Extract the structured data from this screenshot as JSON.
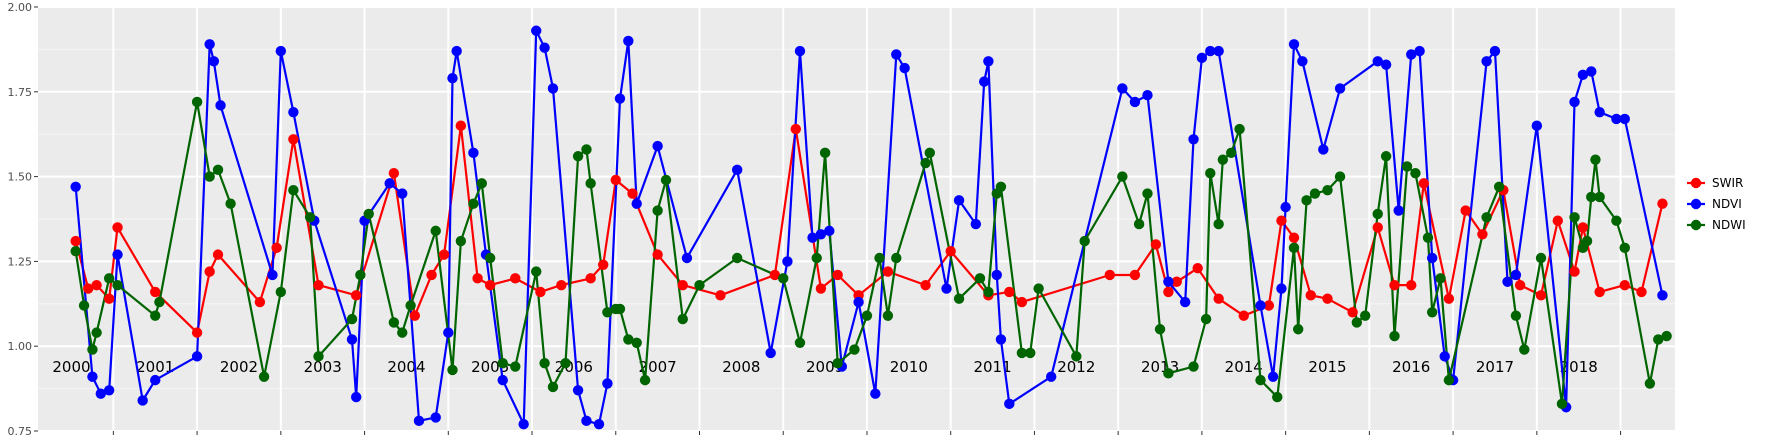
{
  "chart_data": {
    "type": "line",
    "x_range": [
      1999.6,
      2019.15
    ],
    "ylim": [
      0.75,
      2.0
    ],
    "y_ticks": [
      0.75,
      1.0,
      1.25,
      1.5,
      1.75,
      2.0
    ],
    "y_tick_labels": [
      "0.75",
      "1.00",
      "1.25",
      "1.50",
      "1.75",
      "2.00"
    ],
    "year_labels": [
      "2000",
      "2001",
      "2002",
      "2003",
      "2004",
      "2005",
      "2006",
      "2007",
      "2008",
      "2009",
      "2010",
      "2011",
      "2012",
      "2013",
      "2014",
      "2015",
      "2016",
      "2017",
      "2018"
    ],
    "grid": true,
    "legend_position": "right",
    "series": [
      {
        "name": "SWIR",
        "color": "#ff0000",
        "points": [
          [
            2000.05,
            1.31
          ],
          [
            2000.2,
            1.17
          ],
          [
            2000.3,
            1.18
          ],
          [
            2000.45,
            1.14
          ],
          [
            2000.55,
            1.35
          ],
          [
            2001.0,
            1.16
          ],
          [
            2001.5,
            1.04
          ],
          [
            2001.65,
            1.22
          ],
          [
            2001.75,
            1.27
          ],
          [
            2002.25,
            1.13
          ],
          [
            2002.45,
            1.29
          ],
          [
            2002.65,
            1.61
          ],
          [
            2002.95,
            1.18
          ],
          [
            2003.4,
            1.15
          ],
          [
            2003.85,
            1.51
          ],
          [
            2004.1,
            1.09
          ],
          [
            2004.3,
            1.21
          ],
          [
            2004.45,
            1.27
          ],
          [
            2004.65,
            1.65
          ],
          [
            2004.85,
            1.2
          ],
          [
            2005.0,
            1.18
          ],
          [
            2005.3,
            1.2
          ],
          [
            2005.6,
            1.16
          ],
          [
            2005.85,
            1.18
          ],
          [
            2006.2,
            1.2
          ],
          [
            2006.35,
            1.24
          ],
          [
            2006.5,
            1.49
          ],
          [
            2006.7,
            1.45
          ],
          [
            2007.0,
            1.27
          ],
          [
            2007.3,
            1.18
          ],
          [
            2007.75,
            1.15
          ],
          [
            2008.4,
            1.21
          ],
          [
            2008.65,
            1.64
          ],
          [
            2008.95,
            1.17
          ],
          [
            2009.15,
            1.21
          ],
          [
            2009.4,
            1.15
          ],
          [
            2009.75,
            1.22
          ],
          [
            2010.2,
            1.18
          ],
          [
            2010.5,
            1.28
          ],
          [
            2010.95,
            1.15
          ],
          [
            2011.2,
            1.16
          ],
          [
            2011.35,
            1.13
          ],
          [
            2012.4,
            1.21
          ],
          [
            2012.7,
            1.21
          ],
          [
            2012.95,
            1.3
          ],
          [
            2013.1,
            1.16
          ],
          [
            2013.2,
            1.19
          ],
          [
            2013.45,
            1.23
          ],
          [
            2013.7,
            1.14
          ],
          [
            2014.0,
            1.09
          ],
          [
            2014.3,
            1.12
          ],
          [
            2014.45,
            1.37
          ],
          [
            2014.6,
            1.32
          ],
          [
            2014.8,
            1.15
          ],
          [
            2015.0,
            1.14
          ],
          [
            2015.3,
            1.1
          ],
          [
            2015.6,
            1.35
          ],
          [
            2015.8,
            1.18
          ],
          [
            2016.0,
            1.18
          ],
          [
            2016.15,
            1.48
          ],
          [
            2016.45,
            1.14
          ],
          [
            2016.65,
            1.4
          ],
          [
            2016.85,
            1.33
          ],
          [
            2017.1,
            1.46
          ],
          [
            2017.3,
            1.18
          ],
          [
            2017.55,
            1.15
          ],
          [
            2017.75,
            1.37
          ],
          [
            2017.95,
            1.22
          ],
          [
            2018.05,
            1.35
          ],
          [
            2018.25,
            1.16
          ],
          [
            2018.55,
            1.18
          ],
          [
            2018.75,
            1.16
          ],
          [
            2019.0,
            1.42
          ]
        ]
      },
      {
        "name": "NDVI",
        "color": "#0000ff",
        "points": [
          [
            2000.05,
            1.47
          ],
          [
            2000.25,
            0.91
          ],
          [
            2000.35,
            0.86
          ],
          [
            2000.45,
            0.87
          ],
          [
            2000.55,
            1.27
          ],
          [
            2000.85,
            0.84
          ],
          [
            2001.0,
            0.9
          ],
          [
            2001.5,
            0.97
          ],
          [
            2001.65,
            1.89
          ],
          [
            2001.7,
            1.84
          ],
          [
            2001.78,
            1.71
          ],
          [
            2002.4,
            1.21
          ],
          [
            2002.5,
            1.87
          ],
          [
            2002.65,
            1.69
          ],
          [
            2002.9,
            1.37
          ],
          [
            2003.35,
            1.02
          ],
          [
            2003.4,
            0.85
          ],
          [
            2003.5,
            1.37
          ],
          [
            2003.8,
            1.48
          ],
          [
            2003.95,
            1.45
          ],
          [
            2004.15,
            0.78
          ],
          [
            2004.35,
            0.79
          ],
          [
            2004.5,
            1.04
          ],
          [
            2004.55,
            1.79
          ],
          [
            2004.6,
            1.87
          ],
          [
            2004.8,
            1.57
          ],
          [
            2004.95,
            1.27
          ],
          [
            2005.15,
            0.9
          ],
          [
            2005.4,
            0.77
          ],
          [
            2005.55,
            1.93
          ],
          [
            2005.65,
            1.88
          ],
          [
            2005.75,
            1.76
          ],
          [
            2006.05,
            0.87
          ],
          [
            2006.15,
            0.78
          ],
          [
            2006.3,
            0.77
          ],
          [
            2006.4,
            0.89
          ],
          [
            2006.55,
            1.73
          ],
          [
            2006.65,
            1.9
          ],
          [
            2006.75,
            1.42
          ],
          [
            2007.0,
            1.59
          ],
          [
            2007.35,
            1.26
          ],
          [
            2007.95,
            1.52
          ],
          [
            2008.35,
            0.98
          ],
          [
            2008.55,
            1.25
          ],
          [
            2008.7,
            1.87
          ],
          [
            2008.85,
            1.32
          ],
          [
            2008.95,
            1.33
          ],
          [
            2009.05,
            1.34
          ],
          [
            2009.2,
            0.94
          ],
          [
            2009.4,
            1.13
          ],
          [
            2009.6,
            0.86
          ],
          [
            2009.85,
            1.86
          ],
          [
            2009.95,
            1.82
          ],
          [
            2010.45,
            1.17
          ],
          [
            2010.6,
            1.43
          ],
          [
            2010.8,
            1.36
          ],
          [
            2010.9,
            1.78
          ],
          [
            2010.95,
            1.84
          ],
          [
            2011.05,
            1.21
          ],
          [
            2011.1,
            1.02
          ],
          [
            2011.2,
            0.83
          ],
          [
            2011.7,
            0.91
          ],
          [
            2012.55,
            1.76
          ],
          [
            2012.7,
            1.72
          ],
          [
            2012.85,
            1.74
          ],
          [
            2013.1,
            1.19
          ],
          [
            2013.3,
            1.13
          ],
          [
            2013.4,
            1.61
          ],
          [
            2013.5,
            1.85
          ],
          [
            2013.6,
            1.87
          ],
          [
            2013.7,
            1.87
          ],
          [
            2014.2,
            1.12
          ],
          [
            2014.35,
            0.91
          ],
          [
            2014.45,
            1.17
          ],
          [
            2014.5,
            1.41
          ],
          [
            2014.6,
            1.89
          ],
          [
            2014.7,
            1.84
          ],
          [
            2014.95,
            1.58
          ],
          [
            2015.15,
            1.76
          ],
          [
            2015.6,
            1.84
          ],
          [
            2015.7,
            1.83
          ],
          [
            2015.85,
            1.4
          ],
          [
            2016.0,
            1.86
          ],
          [
            2016.1,
            1.87
          ],
          [
            2016.25,
            1.26
          ],
          [
            2016.4,
            0.97
          ],
          [
            2016.5,
            0.9
          ],
          [
            2016.9,
            1.84
          ],
          [
            2017.0,
            1.87
          ],
          [
            2017.15,
            1.19
          ],
          [
            2017.25,
            1.21
          ],
          [
            2017.5,
            1.65
          ],
          [
            2017.85,
            0.82
          ],
          [
            2017.95,
            1.72
          ],
          [
            2018.05,
            1.8
          ],
          [
            2018.15,
            1.81
          ],
          [
            2018.25,
            1.69
          ],
          [
            2018.45,
            1.67
          ],
          [
            2018.55,
            1.67
          ],
          [
            2019.0,
            1.15
          ]
        ]
      },
      {
        "name": "NDWI",
        "color": "#006400",
        "points": [
          [
            2000.05,
            1.28
          ],
          [
            2000.15,
            1.12
          ],
          [
            2000.25,
            0.99
          ],
          [
            2000.3,
            1.04
          ],
          [
            2000.45,
            1.2
          ],
          [
            2000.55,
            1.18
          ],
          [
            2001.0,
            1.09
          ],
          [
            2001.05,
            1.13
          ],
          [
            2001.5,
            1.72
          ],
          [
            2001.65,
            1.5
          ],
          [
            2001.75,
            1.52
          ],
          [
            2001.9,
            1.42
          ],
          [
            2002.3,
            0.91
          ],
          [
            2002.5,
            1.16
          ],
          [
            2002.65,
            1.46
          ],
          [
            2002.85,
            1.38
          ],
          [
            2002.95,
            0.97
          ],
          [
            2003.35,
            1.08
          ],
          [
            2003.45,
            1.21
          ],
          [
            2003.55,
            1.39
          ],
          [
            2003.85,
            1.07
          ],
          [
            2003.95,
            1.04
          ],
          [
            2004.05,
            1.12
          ],
          [
            2004.35,
            1.34
          ],
          [
            2004.55,
            0.93
          ],
          [
            2004.65,
            1.31
          ],
          [
            2004.8,
            1.42
          ],
          [
            2004.9,
            1.48
          ],
          [
            2005.0,
            1.26
          ],
          [
            2005.15,
            0.95
          ],
          [
            2005.3,
            0.94
          ],
          [
            2005.55,
            1.22
          ],
          [
            2005.65,
            0.95
          ],
          [
            2005.75,
            0.88
          ],
          [
            2005.9,
            0.95
          ],
          [
            2006.05,
            1.56
          ],
          [
            2006.15,
            1.58
          ],
          [
            2006.2,
            1.48
          ],
          [
            2006.4,
            1.1
          ],
          [
            2006.5,
            1.11
          ],
          [
            2006.55,
            1.11
          ],
          [
            2006.65,
            1.02
          ],
          [
            2006.75,
            1.01
          ],
          [
            2006.85,
            0.9
          ],
          [
            2007.0,
            1.4
          ],
          [
            2007.1,
            1.49
          ],
          [
            2007.3,
            1.08
          ],
          [
            2007.5,
            1.18
          ],
          [
            2007.95,
            1.26
          ],
          [
            2008.5,
            1.2
          ],
          [
            2008.7,
            1.01
          ],
          [
            2008.9,
            1.26
          ],
          [
            2009.0,
            1.57
          ],
          [
            2009.15,
            0.95
          ],
          [
            2009.35,
            0.99
          ],
          [
            2009.5,
            1.09
          ],
          [
            2009.65,
            1.26
          ],
          [
            2009.75,
            1.09
          ],
          [
            2009.85,
            1.26
          ],
          [
            2010.2,
            1.54
          ],
          [
            2010.25,
            1.57
          ],
          [
            2010.6,
            1.14
          ],
          [
            2010.85,
            1.2
          ],
          [
            2010.95,
            1.16
          ],
          [
            2011.05,
            1.45
          ],
          [
            2011.1,
            1.47
          ],
          [
            2011.35,
            0.98
          ],
          [
            2011.45,
            0.98
          ],
          [
            2011.55,
            1.17
          ],
          [
            2012.0,
            0.97
          ],
          [
            2012.1,
            1.31
          ],
          [
            2012.55,
            1.5
          ],
          [
            2012.75,
            1.36
          ],
          [
            2012.85,
            1.45
          ],
          [
            2013.0,
            1.05
          ],
          [
            2013.1,
            0.92
          ],
          [
            2013.4,
            0.94
          ],
          [
            2013.55,
            1.08
          ],
          [
            2013.6,
            1.51
          ],
          [
            2013.7,
            1.36
          ],
          [
            2013.75,
            1.55
          ],
          [
            2013.85,
            1.57
          ],
          [
            2013.95,
            1.64
          ],
          [
            2014.2,
            0.9
          ],
          [
            2014.4,
            0.85
          ],
          [
            2014.6,
            1.29
          ],
          [
            2014.65,
            1.05
          ],
          [
            2014.75,
            1.43
          ],
          [
            2014.85,
            1.45
          ],
          [
            2015.0,
            1.46
          ],
          [
            2015.15,
            1.5
          ],
          [
            2015.35,
            1.07
          ],
          [
            2015.45,
            1.09
          ],
          [
            2015.6,
            1.39
          ],
          [
            2015.7,
            1.56
          ],
          [
            2015.8,
            1.03
          ],
          [
            2015.95,
            1.53
          ],
          [
            2016.05,
            1.51
          ],
          [
            2016.2,
            1.32
          ],
          [
            2016.25,
            1.1
          ],
          [
            2016.35,
            1.2
          ],
          [
            2016.45,
            0.9
          ],
          [
            2016.9,
            1.38
          ],
          [
            2017.05,
            1.47
          ],
          [
            2017.25,
            1.09
          ],
          [
            2017.35,
            0.99
          ],
          [
            2017.55,
            1.26
          ],
          [
            2017.8,
            0.83
          ],
          [
            2017.95,
            1.38
          ],
          [
            2018.05,
            1.29
          ],
          [
            2018.1,
            1.31
          ],
          [
            2018.15,
            1.44
          ],
          [
            2018.2,
            1.55
          ],
          [
            2018.25,
            1.44
          ],
          [
            2018.45,
            1.37
          ],
          [
            2018.55,
            1.29
          ],
          [
            2018.85,
            0.89
          ],
          [
            2018.95,
            1.02
          ],
          [
            2019.05,
            1.03
          ]
        ]
      }
    ]
  }
}
